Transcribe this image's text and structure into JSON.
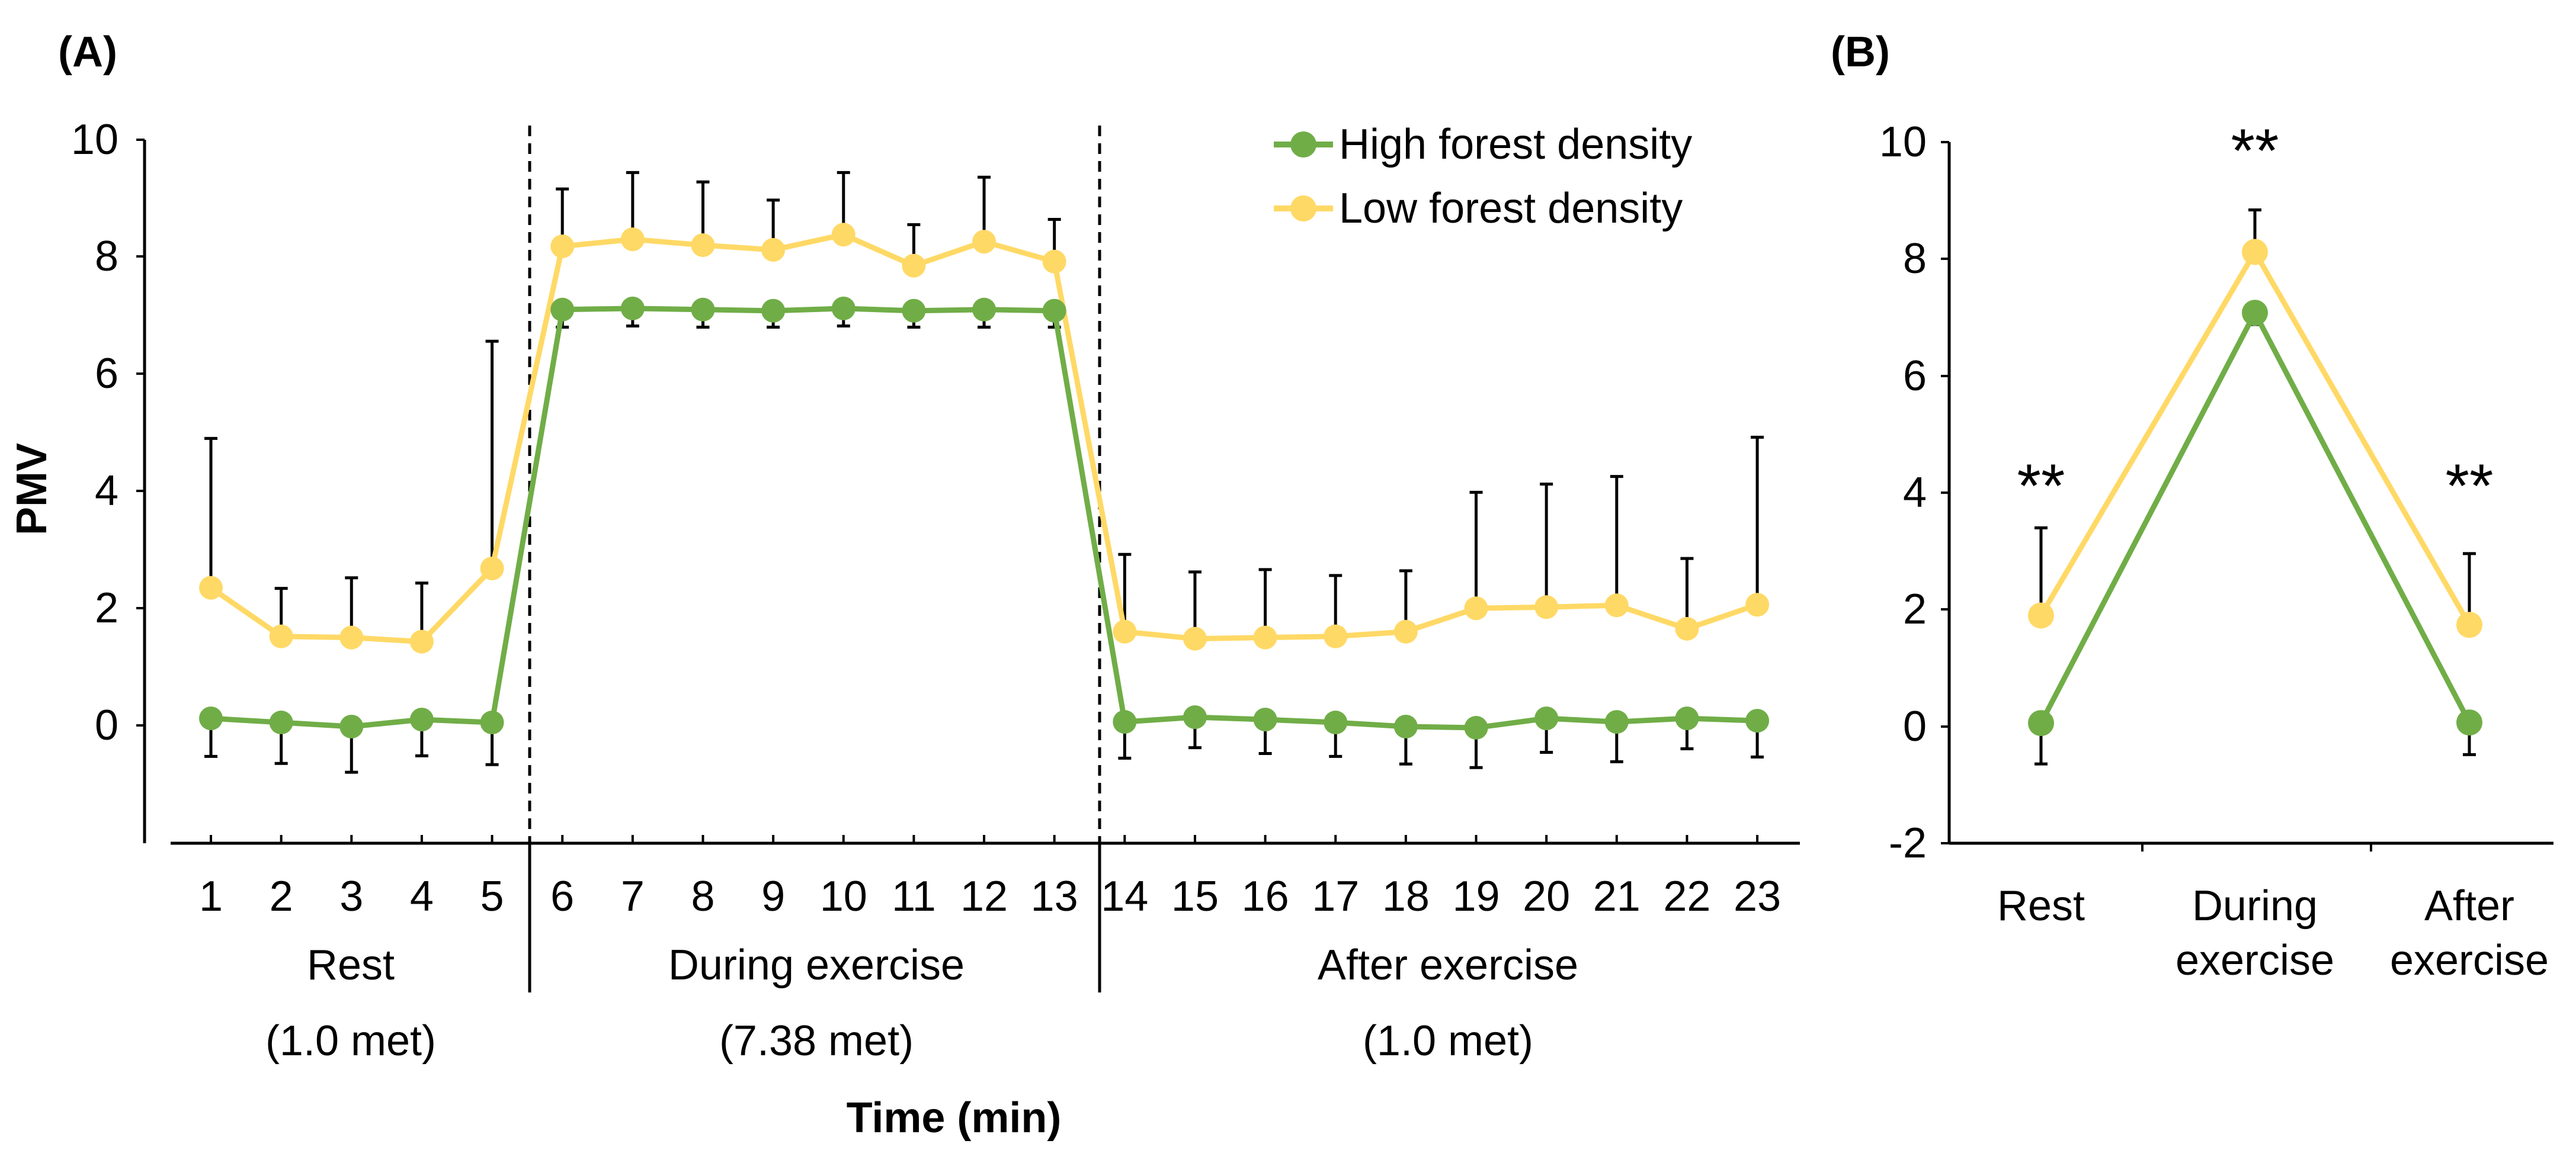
{
  "chart_data": [
    {
      "type": "line",
      "panel_label": "(A)",
      "ylabel": "PMV",
      "xlabel": "Time (min)",
      "ylim": [
        -2,
        10
      ],
      "y_ticks": [
        "0",
        "2",
        "4",
        "6",
        "8",
        "10"
      ],
      "x": [
        1,
        2,
        3,
        4,
        5,
        6,
        7,
        8,
        9,
        10,
        11,
        12,
        13,
        14,
        15,
        16,
        17,
        18,
        19,
        20,
        21,
        22,
        23
      ],
      "x_tick_labels": [
        "1",
        "2",
        "3",
        "4",
        "5",
        "6",
        "7",
        "8",
        "9",
        "10",
        "11",
        "12",
        "13",
        "14",
        "15",
        "16",
        "17",
        "18",
        "19",
        "20",
        "21",
        "22",
        "23"
      ],
      "phases": [
        {
          "name": "Rest",
          "met": "(1.0 met)"
        },
        {
          "name": "During exercise",
          "met": "(7.38 met)"
        },
        {
          "name": "After exercise",
          "met": "(1.0 met)"
        }
      ],
      "series": [
        {
          "name": "High forest density",
          "color": "#70AD47",
          "values": [
            0.12,
            0.05,
            -0.02,
            0.1,
            0.05,
            7.1,
            7.12,
            7.1,
            7.08,
            7.12,
            7.08,
            7.1,
            7.08,
            0.06,
            0.14,
            0.1,
            0.05,
            -0.02,
            -0.04,
            0.12,
            0.06,
            0.12,
            0.08
          ],
          "errors": [
            0.65,
            0.7,
            0.78,
            0.62,
            0.72,
            0.3,
            0.3,
            0.3,
            0.28,
            0.3,
            0.28,
            0.3,
            0.28,
            0.62,
            0.52,
            0.58,
            0.58,
            0.64,
            0.68,
            0.58,
            0.68,
            0.52,
            0.62
          ]
        },
        {
          "name": "Low forest density",
          "color": "#FFD966",
          "values": [
            2.35,
            1.52,
            1.5,
            1.43,
            2.68,
            8.18,
            8.3,
            8.2,
            8.12,
            8.38,
            7.85,
            8.26,
            7.92,
            1.6,
            1.48,
            1.5,
            1.52,
            1.6,
            2.0,
            2.02,
            2.05,
            1.65,
            2.06
          ],
          "errors": [
            2.55,
            0.82,
            1.02,
            1.0,
            3.88,
            0.98,
            1.14,
            1.08,
            0.85,
            1.06,
            0.7,
            1.1,
            0.72,
            1.32,
            1.14,
            1.16,
            1.04,
            1.04,
            1.98,
            2.1,
            2.2,
            1.2,
            2.86
          ]
        }
      ],
      "legend_position": "top-right"
    },
    {
      "type": "line",
      "panel_label": "(B)",
      "ylim": [
        -2,
        10
      ],
      "y_ticks": [
        "-2",
        "0",
        "2",
        "4",
        "6",
        "8",
        "10"
      ],
      "categories": [
        [
          "Rest"
        ],
        [
          "During",
          "exercise"
        ],
        [
          "After",
          "exercise"
        ]
      ],
      "annotations": [
        "**",
        "**",
        "**"
      ],
      "series": [
        {
          "name": "High forest density",
          "color": "#70AD47",
          "values": [
            0.06,
            7.08,
            0.07
          ],
          "errors": [
            0.7,
            0.2,
            0.55
          ]
        },
        {
          "name": "Low forest density",
          "color": "#FFD966",
          "values": [
            1.9,
            8.12,
            1.74
          ],
          "errors": [
            1.5,
            0.72,
            1.22
          ]
        }
      ]
    }
  ]
}
